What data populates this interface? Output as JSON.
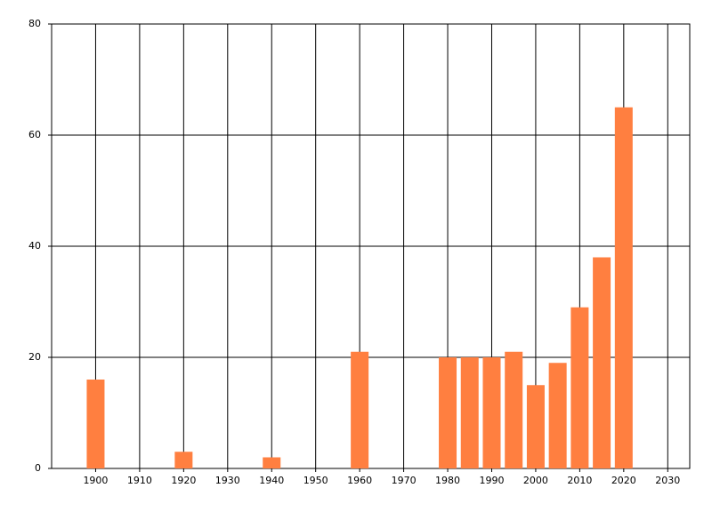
{
  "chart_data": {
    "type": "bar",
    "x": [
      1900,
      1920,
      1940,
      1960,
      1980,
      1985,
      1990,
      1995,
      2000,
      2005,
      2010,
      2015,
      2020
    ],
    "values": [
      16,
      3,
      2,
      21,
      20,
      20,
      20,
      21,
      15,
      19,
      29,
      38,
      65
    ],
    "color": "#ff7f40",
    "xlim": [
      1890,
      2035
    ],
    "xticks": [
      1900,
      1910,
      1920,
      1930,
      1940,
      1950,
      1960,
      1970,
      1980,
      1990,
      2000,
      2010,
      2020,
      2030
    ],
    "ylim": [
      0,
      80
    ],
    "yticks": [
      0,
      20,
      40,
      60,
      80
    ],
    "grid": true
  }
}
